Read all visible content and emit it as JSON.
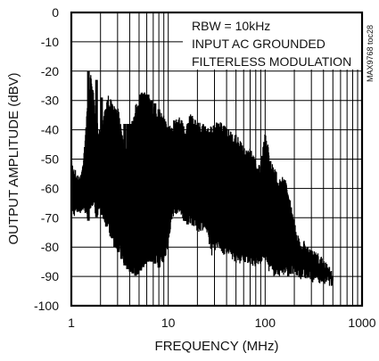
{
  "chart_data": {
    "type": "line",
    "ylabel": "OUTPUT AMPLITUDE (dBV)",
    "xlabel": "FREQUENCY (MHz)",
    "x_scale": "log",
    "xlim": [
      1,
      1000
    ],
    "ylim": [
      -100,
      0
    ],
    "x_ticks": [
      1,
      10,
      100,
      1000
    ],
    "x_tick_labels": [
      "1",
      "10",
      "100",
      "1000"
    ],
    "y_ticks": [
      0,
      -10,
      -20,
      -30,
      -40,
      -50,
      -60,
      -70,
      -80,
      -90,
      -100
    ],
    "y_tick_labels": [
      "0",
      "-10",
      "-20",
      "-30",
      "-40",
      "-50",
      "-60",
      "-70",
      "-80",
      "-90",
      "-100"
    ],
    "grid": true,
    "annotations": [
      "RBW = 10kHz",
      "INPUT AC GROUNDED",
      "FILTERLESS MODULATION"
    ],
    "side_label": "MAX9768 toc28",
    "color": "#000000",
    "series": [
      {
        "envelope_upper": [
          [
            1.0,
            -50
          ],
          [
            1.2,
            -56
          ],
          [
            1.3,
            -52
          ],
          [
            1.5,
            -28
          ],
          [
            1.6,
            -20
          ],
          [
            1.8,
            -36
          ],
          [
            2.0,
            -40
          ],
          [
            2.2,
            -32
          ],
          [
            2.4,
            -28
          ],
          [
            2.8,
            -32
          ],
          [
            3.1,
            -33
          ],
          [
            3.5,
            -44
          ],
          [
            3.9,
            -44
          ],
          [
            4.3,
            -36
          ],
          [
            4.7,
            -30
          ],
          [
            5.2,
            -27
          ],
          [
            6.0,
            -27
          ],
          [
            7.0,
            -32
          ],
          [
            8.0,
            -33
          ],
          [
            9.0,
            -34
          ],
          [
            10.0,
            -39
          ],
          [
            11.0,
            -37
          ],
          [
            13.0,
            -34
          ],
          [
            15.0,
            -40
          ],
          [
            17.0,
            -34
          ],
          [
            20.0,
            -37
          ],
          [
            24.0,
            -38
          ],
          [
            28.0,
            -39
          ],
          [
            32.0,
            -37
          ],
          [
            38.0,
            -38
          ],
          [
            45.0,
            -41
          ],
          [
            52.0,
            -42
          ],
          [
            60.0,
            -46
          ],
          [
            70.0,
            -46
          ],
          [
            80.0,
            -50
          ],
          [
            90.0,
            -52
          ],
          [
            100.0,
            -40
          ],
          [
            108.0,
            -46
          ],
          [
            120.0,
            -52
          ],
          [
            140.0,
            -56
          ],
          [
            160.0,
            -56
          ],
          [
            180.0,
            -63
          ],
          [
            200.0,
            -70
          ],
          [
            230.0,
            -79
          ],
          [
            260.0,
            -77
          ],
          [
            300.0,
            -81
          ],
          [
            350.0,
            -82
          ],
          [
            400.0,
            -84
          ],
          [
            450.0,
            -86
          ],
          [
            500.0,
            -88
          ]
        ],
        "envelope_lower": [
          [
            1.0,
            -70
          ],
          [
            1.2,
            -69
          ],
          [
            1.3,
            -68
          ],
          [
            1.5,
            -71
          ],
          [
            1.6,
            -66
          ],
          [
            1.8,
            -70
          ],
          [
            2.0,
            -68
          ],
          [
            2.2,
            -72
          ],
          [
            2.4,
            -74
          ],
          [
            2.8,
            -80
          ],
          [
            3.1,
            -82
          ],
          [
            3.5,
            -86
          ],
          [
            3.9,
            -88
          ],
          [
            4.3,
            -89
          ],
          [
            4.7,
            -90
          ],
          [
            5.2,
            -88
          ],
          [
            6.0,
            -85
          ],
          [
            7.0,
            -85
          ],
          [
            8.0,
            -87
          ],
          [
            9.0,
            -86
          ],
          [
            10.0,
            -80
          ],
          [
            11.0,
            -70
          ],
          [
            13.0,
            -68
          ],
          [
            15.0,
            -74
          ],
          [
            17.0,
            -72
          ],
          [
            20.0,
            -75
          ],
          [
            24.0,
            -74
          ],
          [
            28.0,
            -83
          ],
          [
            32.0,
            -80
          ],
          [
            38.0,
            -83
          ],
          [
            45.0,
            -84
          ],
          [
            52.0,
            -86
          ],
          [
            60.0,
            -85
          ],
          [
            70.0,
            -86
          ],
          [
            80.0,
            -87
          ],
          [
            90.0,
            -86
          ],
          [
            100.0,
            -84
          ],
          [
            108.0,
            -88
          ],
          [
            120.0,
            -90
          ],
          [
            140.0,
            -90
          ],
          [
            160.0,
            -90
          ],
          [
            180.0,
            -90
          ],
          [
            200.0,
            -90
          ],
          [
            230.0,
            -91
          ],
          [
            260.0,
            -91
          ],
          [
            300.0,
            -92
          ],
          [
            350.0,
            -92
          ],
          [
            400.0,
            -93
          ],
          [
            450.0,
            -93
          ],
          [
            500.0,
            -94
          ]
        ],
        "spurs": [
          [
            1.5,
            -20
          ],
          [
            1.82,
            -23
          ],
          [
            2.05,
            -29
          ],
          [
            2.3,
            -37
          ],
          [
            2.55,
            -37
          ],
          [
            2.8,
            -36
          ],
          [
            3.05,
            -40
          ],
          [
            3.3,
            -42
          ],
          [
            3.55,
            -38
          ],
          [
            3.8,
            -38
          ],
          [
            4.05,
            -38
          ],
          [
            4.3,
            -37
          ],
          [
            4.6,
            -37
          ],
          [
            4.9,
            -37
          ],
          [
            5.2,
            -28
          ],
          [
            5.5,
            -28
          ],
          [
            5.8,
            -28
          ],
          [
            6.2,
            -28
          ],
          [
            6.7,
            -30
          ],
          [
            7.3,
            -31
          ],
          [
            8.0,
            -33
          ]
        ]
      }
    ]
  }
}
